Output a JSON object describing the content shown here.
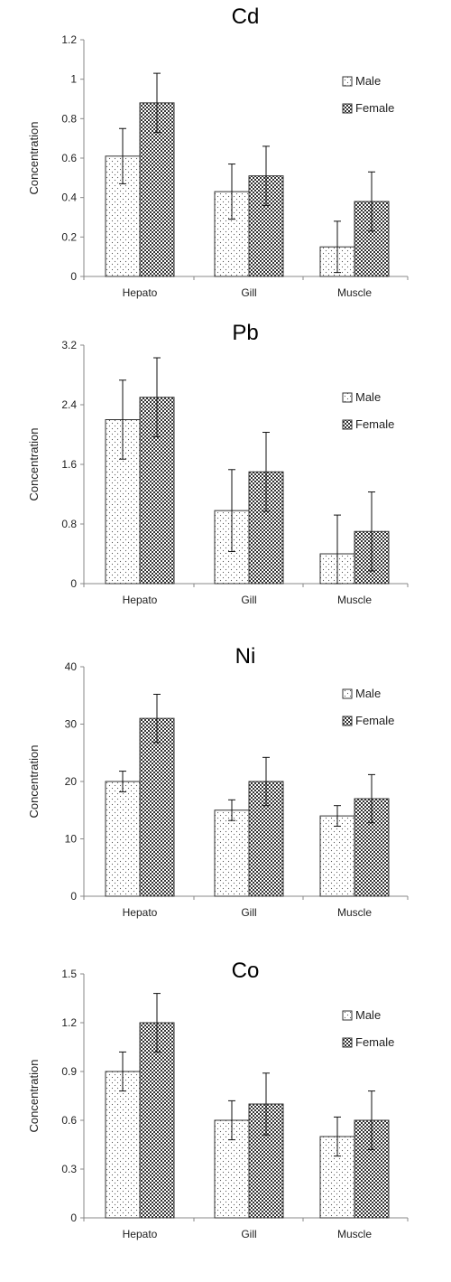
{
  "chart_data": [
    {
      "type": "bar",
      "title": "Cd",
      "ylabel": "Concentration",
      "categories": [
        "Hepato",
        "Gill",
        "Muscle"
      ],
      "ylim": [
        0,
        1.2
      ],
      "yticks": [
        "0",
        "0.2",
        "0.4",
        "0.6",
        "0.8",
        "1",
        "1.2"
      ],
      "legend_position": "right",
      "series": [
        {
          "name": "Male",
          "values": [
            0.61,
            0.43,
            0.15
          ],
          "errors": [
            0.14,
            0.14,
            0.13
          ]
        },
        {
          "name": "Female",
          "values": [
            0.88,
            0.51,
            0.38
          ],
          "errors": [
            0.15,
            0.15,
            0.15
          ]
        }
      ]
    },
    {
      "type": "bar",
      "title": "Pb",
      "ylabel": "Concentration",
      "categories": [
        "Hepato",
        "Gill",
        "Muscle"
      ],
      "ylim": [
        0,
        3.2
      ],
      "yticks": [
        "0",
        "0.8",
        "1.6",
        "2.4",
        "3.2"
      ],
      "legend_position": "right",
      "series": [
        {
          "name": "Male",
          "values": [
            2.2,
            0.98,
            0.4
          ],
          "errors": [
            0.53,
            0.55,
            0.52
          ]
        },
        {
          "name": "Female",
          "values": [
            2.5,
            1.5,
            0.7
          ],
          "errors": [
            0.53,
            0.53,
            0.53
          ]
        }
      ]
    },
    {
      "type": "bar",
      "title": "Ni",
      "ylabel": "Concentration",
      "categories": [
        "Hepato",
        "Gill",
        "Muscle"
      ],
      "ylim": [
        0,
        40
      ],
      "yticks": [
        "0",
        "10",
        "20",
        "30",
        "40"
      ],
      "legend_position": "right",
      "series": [
        {
          "name": "Male",
          "values": [
            20,
            15,
            14
          ],
          "errors": [
            1.8,
            1.8,
            1.8
          ]
        },
        {
          "name": "Female",
          "values": [
            31,
            20,
            17
          ],
          "errors": [
            4.2,
            4.2,
            4.2
          ]
        }
      ]
    },
    {
      "type": "bar",
      "title": "Co",
      "ylabel": "Concentration",
      "categories": [
        "Hepato",
        "Gill",
        "Muscle"
      ],
      "ylim": [
        0,
        1.5
      ],
      "yticks": [
        "0",
        "0.3",
        "0.6",
        "0.9",
        "1.2",
        "1.5"
      ],
      "legend_position": "right",
      "series": [
        {
          "name": "Male",
          "values": [
            0.9,
            0.6,
            0.5
          ],
          "errors": [
            0.12,
            0.12,
            0.12
          ]
        },
        {
          "name": "Female",
          "values": [
            1.2,
            0.7,
            0.6
          ],
          "errors": [
            0.18,
            0.19,
            0.18
          ]
        }
      ]
    }
  ]
}
